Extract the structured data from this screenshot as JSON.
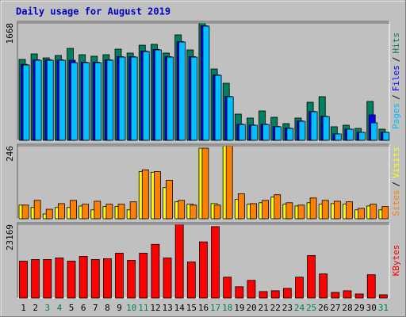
{
  "chart_data": {
    "type": "bar",
    "title": "Daily usage for August 2019",
    "categories": [
      "1",
      "2",
      "3",
      "4",
      "5",
      "6",
      "7",
      "8",
      "9",
      "10",
      "11",
      "12",
      "13",
      "14",
      "15",
      "16",
      "17",
      "18",
      "19",
      "20",
      "21",
      "22",
      "23",
      "24",
      "25",
      "26",
      "27",
      "28",
      "29",
      "30",
      "31"
    ],
    "category_colors": [
      "#000000",
      "#000000",
      "#00805c",
      "#00805c",
      "#000000",
      "#000000",
      "#000000",
      "#000000",
      "#000000",
      "#00805c",
      "#00805c",
      "#000000",
      "#000000",
      "#000000",
      "#000000",
      "#000000",
      "#00805c",
      "#00805c",
      "#000000",
      "#000000",
      "#000000",
      "#000000",
      "#000000",
      "#00805c",
      "#00805c",
      "#000000",
      "#000000",
      "#000000",
      "#000000",
      "#000000",
      "#00805c"
    ],
    "legend_separator": "/",
    "panels": [
      {
        "ylim": [
          0,
          1668
        ],
        "yticks": [
          1668
        ],
        "series": [
          {
            "name": "Hits",
            "color": "#008060",
            "values": [
              1150,
              1228,
              1172,
              1206,
              1307,
              1217,
              1195,
              1217,
              1296,
              1240,
              1352,
              1364,
              1240,
              1499,
              1285,
              1668,
              1014,
              811,
              372,
              316,
              417,
              327,
              237,
              316,
              541,
              620,
              192,
              214,
              169,
              552,
              158
            ]
          },
          {
            "name": "Files",
            "color": "#0000ff",
            "values": [
              1080,
              1145,
              1145,
              1145,
              1138,
              1110,
              1110,
              1145,
              1190,
              1190,
              1270,
              1292,
              1190,
              1405,
              1190,
              1630,
              930,
              625,
              230,
              218,
              230,
              197,
              172,
              275,
              410,
              342,
              92,
              160,
              115,
              361,
              115
            ]
          },
          {
            "name": "Pages",
            "color": "#00c0ff",
            "values": [
              1071,
              1138,
              1138,
              1138,
              1104,
              1104,
              1104,
              1138,
              1183,
              1183,
              1262,
              1285,
              1183,
              1397,
              1183,
              1623,
              924,
              620,
              225,
              214,
              225,
              192,
              169,
              270,
              406,
              338,
              90,
              158,
              113,
              248,
              113
            ]
          }
        ]
      },
      {
        "ylim": [
          0,
          246
        ],
        "yticks": [
          246
        ],
        "series": [
          {
            "name": "Visits",
            "color": "#ffff00",
            "values": [
              46,
              38,
              16,
              38,
              38,
              43,
              30,
              41,
              41,
              30,
              159,
              157,
              105,
              57,
              49,
              238,
              51,
              246,
              65,
              49,
              54,
              73,
              49,
              43,
              54,
              49,
              51,
              49,
              30,
              43,
              30
            ]
          },
          {
            "name": "Sites",
            "color": "#ff8000",
            "values": [
              46,
              62,
              32,
              51,
              62,
              49,
              59,
              49,
              49,
              57,
              165,
              159,
              130,
              62,
              46,
              238,
              46,
              246,
              84,
              51,
              62,
              81,
              54,
              46,
              70,
              62,
              59,
              57,
              35,
              49,
              41
            ]
          }
        ]
      },
      {
        "ylim": [
          0,
          23169
        ],
        "yticks": [
          23169
        ],
        "series": [
          {
            "name": "KBytes",
            "color": "#ff0000",
            "values": [
              11590,
              12100,
              12100,
              12600,
              11590,
              13100,
              12100,
              12350,
              14100,
              11840,
              14100,
              16870,
              12600,
              23169,
              11340,
              17640,
              22430,
              6550,
              3530,
              5540,
              2020,
              2270,
              3020,
              6550,
              13360,
              7560,
              1760,
              2270,
              1260,
              7310,
              1010
            ]
          }
        ]
      }
    ]
  }
}
